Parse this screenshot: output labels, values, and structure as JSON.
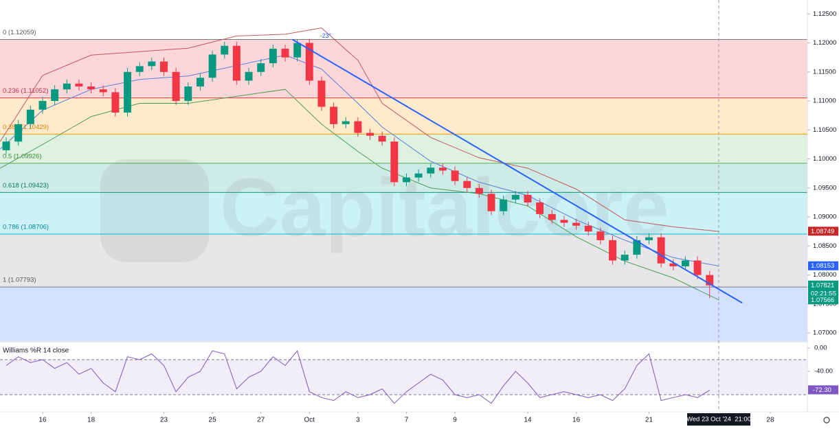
{
  "chart_data": [
    {
      "type": "candlestick",
      "watermark": "Capitalcore",
      "ylim": [
        1.0686,
        1.1274
      ],
      "yticks": [
        {
          "value": 1.07,
          "label": "1.07000"
        },
        {
          "value": 1.075,
          "label": "1.07500"
        },
        {
          "value": 1.08,
          "label": "1.08000"
        },
        {
          "value": 1.085,
          "label": "1.08500"
        },
        {
          "value": 1.09,
          "label": "1.09000"
        },
        {
          "value": 1.095,
          "label": "1.09500"
        },
        {
          "value": 1.1,
          "label": "1.10000"
        },
        {
          "value": 1.105,
          "label": "1.10500"
        },
        {
          "value": 1.11,
          "label": "1.11000"
        },
        {
          "value": 1.115,
          "label": "1.11500"
        },
        {
          "value": 1.12,
          "label": "1.12000"
        },
        {
          "value": 1.125,
          "label": "1.12500"
        }
      ],
      "up_color": "#089981",
      "down_color": "#f23645",
      "candles": {
        "x": [
          -1.5,
          -1,
          -0.5,
          0,
          0.5,
          1,
          1.5,
          2,
          2.5,
          3,
          3.5,
          4,
          4.5,
          5,
          5.5,
          6,
          6.5,
          7,
          7.5,
          8,
          8.5,
          9,
          9.5,
          10,
          10.5,
          11,
          11.5,
          12,
          12.5,
          13,
          13.5,
          14,
          14.5,
          15,
          15.5,
          16,
          16.5,
          17,
          17.5,
          18,
          18.5,
          19,
          19.5,
          20,
          20.5,
          21,
          21.5,
          22,
          22.5,
          23,
          23.5,
          24,
          24.5,
          25,
          25.5,
          26,
          26.5,
          27,
          27.5
        ],
        "open": [
          1.1015,
          1.103,
          1.106,
          1.1085,
          1.11,
          1.112,
          1.113,
          1.1125,
          1.112,
          1.1115,
          1.108,
          1.115,
          1.116,
          1.1168,
          1.115,
          1.11,
          1.1125,
          1.114,
          1.118,
          1.1195,
          1.1135,
          1.115,
          1.1165,
          1.119,
          1.1175,
          1.12,
          1.1135,
          1.109,
          1.106,
          1.1065,
          1.1045,
          1.104,
          1.103,
          1.096,
          1.0968,
          1.0975,
          1.0985,
          1.098,
          1.0962,
          1.095,
          1.094,
          1.091,
          1.093,
          1.0938,
          1.0925,
          1.0905,
          1.0895,
          1.089,
          1.0885,
          1.0875,
          1.086,
          1.0825,
          1.0835,
          1.086,
          1.0865,
          1.082,
          1.0815,
          1.0825,
          1.08
        ],
        "high": [
          1.1037,
          1.1067,
          1.1092,
          1.1107,
          1.1127,
          1.1137,
          1.1137,
          1.1132,
          1.1127,
          1.1122,
          1.1157,
          1.1167,
          1.1175,
          1.1175,
          1.1157,
          1.1132,
          1.1147,
          1.1187,
          1.1202,
          1.1202,
          1.1157,
          1.1172,
          1.1197,
          1.1197,
          1.1206,
          1.1207,
          1.1142,
          1.1097,
          1.1072,
          1.1072,
          1.1052,
          1.1047,
          1.1037,
          1.0975,
          1.0982,
          1.0992,
          1.0992,
          1.0987,
          1.0969,
          1.0957,
          1.0947,
          1.0937,
          1.0945,
          1.0945,
          1.0932,
          1.0912,
          1.0902,
          1.0897,
          1.0892,
          1.0882,
          1.0867,
          1.0842,
          1.0867,
          1.0872,
          1.0872,
          1.0827,
          1.0832,
          1.0832,
          1.0807
        ],
        "low": [
          1.1008,
          1.1023,
          1.1053,
          1.1078,
          1.1093,
          1.1113,
          1.1118,
          1.1113,
          1.1108,
          1.1073,
          1.1073,
          1.1143,
          1.1153,
          1.1143,
          1.1093,
          1.1093,
          1.1118,
          1.1133,
          1.1173,
          1.1128,
          1.1128,
          1.1143,
          1.1158,
          1.1168,
          1.1168,
          1.1128,
          1.1083,
          1.1053,
          1.1053,
          1.1038,
          1.1033,
          1.1023,
          1.0953,
          1.0953,
          1.0961,
          1.0968,
          1.0973,
          1.0955,
          1.0943,
          1.0933,
          1.0903,
          1.0903,
          1.0923,
          1.0918,
          1.0898,
          1.0888,
          1.0883,
          1.0878,
          1.0868,
          1.0853,
          1.0818,
          1.0818,
          1.0828,
          1.0853,
          1.0813,
          1.0808,
          1.0808,
          1.0793,
          1.076
        ],
        "close": [
          1.103,
          1.106,
          1.1085,
          1.11,
          1.112,
          1.113,
          1.1125,
          1.112,
          1.1115,
          1.108,
          1.115,
          1.116,
          1.1168,
          1.115,
          1.11,
          1.1125,
          1.114,
          1.118,
          1.1195,
          1.1135,
          1.115,
          1.1165,
          1.119,
          1.1175,
          1.12,
          1.1135,
          1.109,
          1.106,
          1.1065,
          1.1045,
          1.104,
          1.103,
          1.096,
          1.0968,
          1.0975,
          1.0985,
          1.098,
          1.0962,
          1.095,
          1.094,
          1.091,
          1.093,
          1.0938,
          1.0925,
          1.0905,
          1.0895,
          1.089,
          1.0885,
          1.0875,
          1.086,
          1.0825,
          1.0835,
          1.086,
          1.0865,
          1.082,
          1.0815,
          1.0825,
          1.08,
          1.07821
        ]
      },
      "bands": {
        "x": [
          -1.75,
          0,
          2,
          4,
          6,
          8,
          10,
          11.5,
          13,
          14,
          16,
          18,
          20,
          22,
          24,
          26,
          27.9
        ],
        "upper": [
          1.103,
          1.1144,
          1.1179,
          1.1185,
          1.1191,
          1.1212,
          1.1215,
          1.1226,
          1.117,
          1.1096,
          1.1037,
          1.1002,
          1.0984,
          1.0948,
          1.0895,
          1.0883,
          1.08749
        ],
        "middle": [
          1.1017,
          1.1084,
          1.112,
          1.1137,
          1.1143,
          1.1161,
          1.1179,
          1.1155,
          1.1096,
          1.1055,
          1.0996,
          1.096,
          1.0937,
          1.0895,
          1.086,
          1.083,
          1.08153
        ],
        "lower": [
          1.0984,
          1.1025,
          1.1073,
          1.1096,
          1.1096,
          1.1108,
          1.112,
          1.106,
          1.1013,
          1.0984,
          1.095,
          1.094,
          1.0919,
          1.0866,
          1.0824,
          1.0795,
          1.07566
        ],
        "upper_color": "#c2575f",
        "middle_color": "#5b7fd6",
        "lower_color": "#4f9a58"
      },
      "fib": [
        {
          "label": "0 (1.12059)",
          "value": 1.12059,
          "color": "#787b86",
          "zone_color": "rgba(242,54,69,0.2)",
          "label_color": "#555"
        },
        {
          "label": "0.236 (1.11052)",
          "value": 1.11052,
          "color": "#f23645",
          "zone_color": "rgba(255,152,0,0.2)",
          "label_color": "#c2303c"
        },
        {
          "label": "0.382 (1.10429)",
          "value": 1.10429,
          "color": "#ff9800",
          "zone_color": "rgba(76,175,80,0.18)",
          "label_color": "#d98200"
        },
        {
          "label": "0.5 (1.09926)",
          "value": 1.09926,
          "color": "#4caf50",
          "zone_color": "rgba(8,153,129,0.2)",
          "label_color": "#3a8c3e"
        },
        {
          "label": "0.618 (1.09423)",
          "value": 1.09423,
          "color": "#089981",
          "zone_color": "rgba(0,188,212,0.2)",
          "label_color": "#067a67"
        },
        {
          "label": "0.786 (1.08706)",
          "value": 1.08706,
          "color": "#00bcd4",
          "zone_color": "rgba(120,123,134,0.18)",
          "label_color": "#00879a"
        },
        {
          "label": "1 (1.07793)",
          "value": 1.07793,
          "color": "#787b86",
          "zone_color": "rgba(41,98,255,0.2)",
          "label_color": "#555"
        }
      ],
      "trendline": {
        "x": [
          10.3,
          28.84
        ],
        "y": [
          1.1206,
          1.0752
        ],
        "color": "#2962ff",
        "angle_label": "-23°"
      },
      "axis_badges": [
        {
          "value": 1.08749,
          "label": "1.08749",
          "color": "#c62828"
        },
        {
          "value": 1.08153,
          "label": "1.08153",
          "color": "#2962ff"
        },
        {
          "value": 1.07821,
          "label": "1.07821",
          "color": "#089981"
        },
        {
          "label": "02:21:55",
          "color": "#089981"
        },
        {
          "value": 1.07566,
          "label": "1.07566",
          "color": "#089981"
        }
      ]
    },
    {
      "type": "line",
      "title": "Williams %R 14 close",
      "color": "#7e57c2",
      "ylim": [
        -105.9,
        8.2
      ],
      "yticks": [
        {
          "value": 0,
          "label": "0.00"
        },
        {
          "value": -40,
          "label": "-40.00"
        }
      ],
      "levels": [
        -20,
        -80
      ],
      "x": [
        -1.5,
        -1,
        -0.5,
        0,
        0.5,
        1,
        1.5,
        2,
        2.5,
        3,
        3.5,
        4,
        4.5,
        5,
        5.5,
        6,
        6.5,
        7,
        7.5,
        8,
        8.5,
        9,
        9.5,
        10,
        10.5,
        11,
        11.5,
        12,
        12.5,
        13,
        13.5,
        14,
        14.5,
        15,
        15.5,
        16,
        16.5,
        17,
        17.5,
        18,
        18.5,
        19,
        19.5,
        20,
        20.5,
        21,
        21.5,
        22,
        22.5,
        23,
        23.5,
        24,
        24.5,
        25,
        25.5,
        26,
        26.5,
        27,
        27.5
      ],
      "values": [
        -30,
        -15,
        -25,
        -20,
        -35,
        -25,
        -45,
        -35,
        -60,
        -75,
        -15,
        -20,
        -10,
        -30,
        -75,
        -50,
        -40,
        -5,
        -10,
        -70,
        -50,
        -40,
        -15,
        -30,
        -5,
        -75,
        -85,
        -90,
        -75,
        -85,
        -80,
        -70,
        -95,
        -75,
        -60,
        -45,
        -55,
        -80,
        -85,
        -80,
        -95,
        -65,
        -40,
        -60,
        -85,
        -80,
        -75,
        -80,
        -85,
        -80,
        -90,
        -70,
        -30,
        -10,
        -90,
        -85,
        -80,
        -85,
        -72.3
      ],
      "last_value_label": "-72.30",
      "xlim": [
        -1.756,
        31.53
      ],
      "xticks": [
        {
          "value": 0,
          "label": "16"
        },
        {
          "value": 2,
          "label": "18"
        },
        {
          "value": 5,
          "label": "23"
        },
        {
          "value": 7,
          "label": "25"
        },
        {
          "value": 9,
          "label": "27"
        },
        {
          "value": 11,
          "label": "Oct"
        },
        {
          "value": 13,
          "label": "3"
        },
        {
          "value": 15,
          "label": "7"
        },
        {
          "value": 17,
          "label": "9"
        },
        {
          "value": 20,
          "label": "14"
        },
        {
          "value": 22,
          "label": "16"
        },
        {
          "value": 25,
          "label": "21"
        },
        {
          "value": 30,
          "label": "28"
        }
      ],
      "crosshair": {
        "x": 27.875,
        "label": "Wed 23 Oct '24  21:00"
      }
    }
  ]
}
